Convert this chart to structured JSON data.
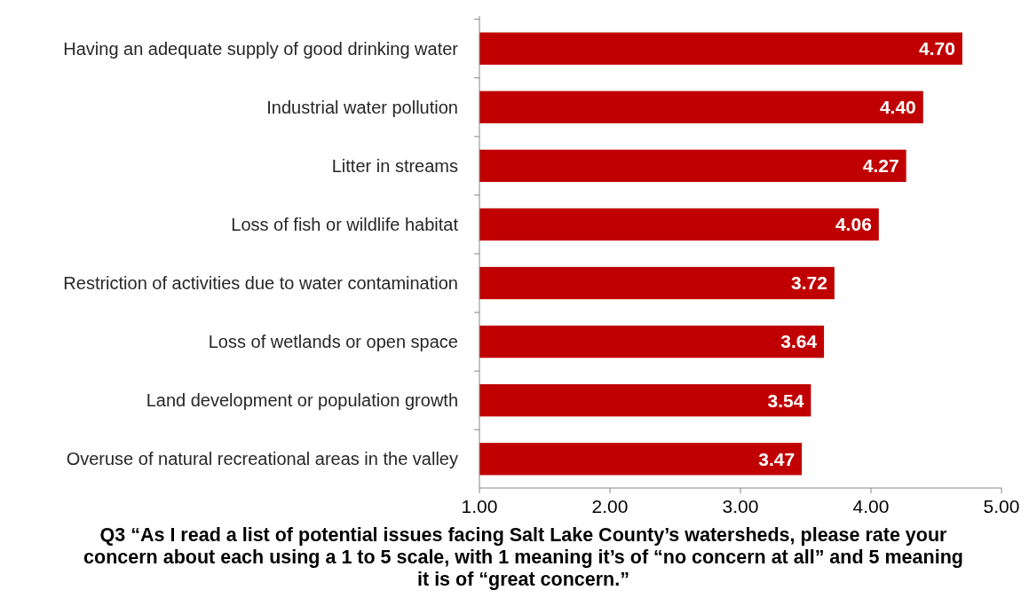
{
  "chart_data": {
    "type": "bar",
    "orientation": "horizontal",
    "xlabel": "Q3 “As I read a list of potential issues facing Salt Lake County’s watersheds, please rate your concern about each using a 1 to 5 scale, with 1 meaning it’s of “no concern at all” and 5 meaning it is of “great concern.”",
    "categories": [
      "Having an adequate supply of good drinking water",
      "Industrial water pollution",
      "Litter in streams",
      "Loss of fish or wildlife habitat",
      "Restriction of activities due to water contamination",
      "Loss of wetlands or open space",
      "Land development or population growth",
      "Overuse of natural recreational areas in the valley"
    ],
    "values": [
      4.7,
      4.4,
      4.27,
      4.06,
      3.72,
      3.64,
      3.54,
      3.47
    ],
    "value_labels": [
      "4.70",
      "4.40",
      "4.27",
      "4.06",
      "3.72",
      "3.64",
      "3.54",
      "3.47"
    ],
    "color": "#c00000",
    "xlim": [
      1,
      5
    ],
    "xticks": [
      {
        "value": 1,
        "label": "1.00"
      },
      {
        "value": 2,
        "label": "2.00"
      },
      {
        "value": 3,
        "label": "3.00"
      },
      {
        "value": 4,
        "label": "4.00"
      },
      {
        "value": 5,
        "label": "5.00"
      }
    ],
    "grid": false
  }
}
